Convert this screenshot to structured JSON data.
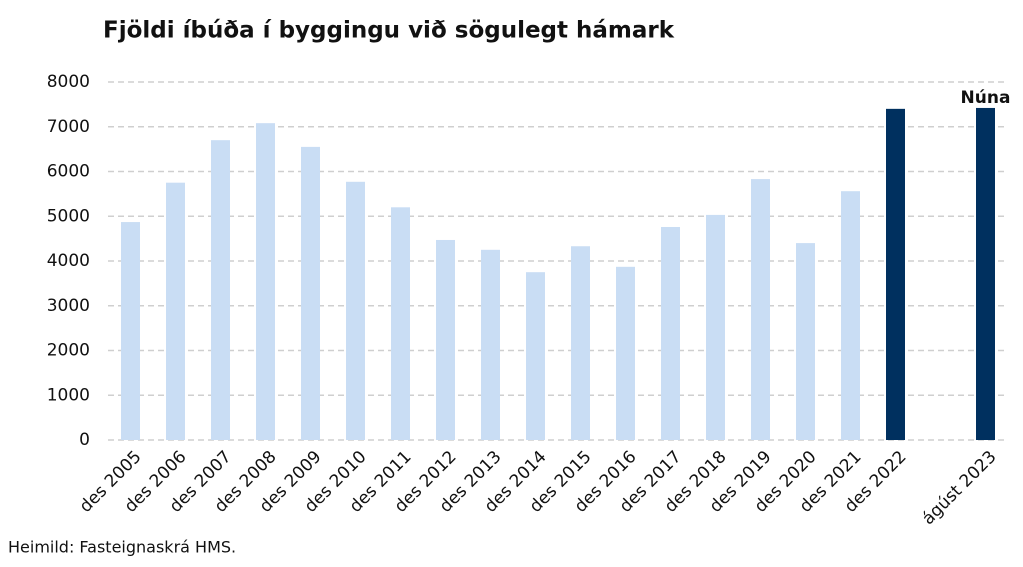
{
  "chart_data": {
    "type": "bar",
    "title": "Fjöldi íbúða í byggingu við sögulegt hámark",
    "source": "Heimild: Fasteignaskrá HMS.",
    "annotation": "Núna",
    "categories": [
      "des 2005",
      "des 2006",
      "des 2007",
      "des 2008",
      "des 2009",
      "des 2010",
      "des 2011",
      "des 2012",
      "des 2013",
      "des 2014",
      "des 2015",
      "des 2016",
      "des 2017",
      "des 2018",
      "des 2019",
      "des 2020",
      "des 2021",
      "des 2022",
      null,
      "ágúst 2023"
    ],
    "values": [
      4870,
      5750,
      6700,
      7080,
      6550,
      5770,
      5200,
      4470,
      4250,
      3750,
      4330,
      3870,
      4760,
      5030,
      5830,
      4400,
      5560,
      7400,
      null,
      7420
    ],
    "colors": [
      "#c9ddf4",
      "#c9ddf4",
      "#c9ddf4",
      "#c9ddf4",
      "#c9ddf4",
      "#c9ddf4",
      "#c9ddf4",
      "#c9ddf4",
      "#c9ddf4",
      "#c9ddf4",
      "#c9ddf4",
      "#c9ddf4",
      "#c9ddf4",
      "#c9ddf4",
      "#c9ddf4",
      "#c9ddf4",
      "#c9ddf4",
      "#00305f",
      null,
      "#00305f"
    ],
    "ylim": [
      0,
      8000
    ],
    "yticks": [
      0,
      1000,
      2000,
      3000,
      4000,
      5000,
      6000,
      7000,
      8000
    ],
    "grid": true
  }
}
